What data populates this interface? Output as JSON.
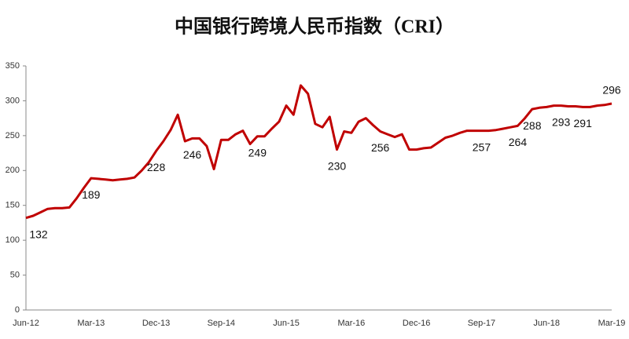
{
  "chart_data": {
    "type": "line",
    "title": "中国银行跨境人民币指数（CRI）",
    "categories": [
      "Jun-12",
      null,
      null,
      null,
      null,
      null,
      null,
      null,
      null,
      "Mar-13",
      null,
      null,
      null,
      null,
      null,
      null,
      null,
      null,
      "Dec-13",
      null,
      null,
      null,
      null,
      null,
      null,
      null,
      null,
      "Sep-14",
      null,
      null,
      null,
      null,
      null,
      null,
      null,
      null,
      "Jun-15",
      null,
      null,
      null,
      null,
      null,
      null,
      null,
      null,
      "Mar-16",
      null,
      null,
      null,
      null,
      null,
      null,
      null,
      null,
      "Dec-16",
      null,
      null,
      null,
      null,
      null,
      null,
      null,
      null,
      "Sep-17",
      null,
      null,
      null,
      null,
      null,
      null,
      null,
      null,
      "Jun-18",
      null,
      null,
      null,
      null,
      null,
      null,
      null,
      null,
      "Mar-19"
    ],
    "series": [
      {
        "name": "CRI",
        "color": "#c00000",
        "values": [
          132,
          135,
          140,
          145,
          146,
          146,
          147,
          160,
          175,
          189,
          188,
          187,
          186,
          187,
          188,
          190,
          200,
          212,
          228,
          242,
          258,
          280,
          242,
          246,
          246,
          235,
          202,
          244,
          244,
          252,
          257,
          238,
          249,
          249,
          260,
          270,
          293,
          280,
          322,
          310,
          267,
          262,
          277,
          230,
          256,
          254,
          270,
          275,
          265,
          256,
          252,
          248,
          252,
          230,
          230,
          232,
          233,
          240,
          247,
          250,
          254,
          257,
          257,
          257,
          257,
          258,
          260,
          262,
          264,
          275,
          288,
          290,
          291,
          293,
          293,
          292,
          292,
          291,
          291,
          293,
          294,
          296
        ]
      }
    ],
    "labeled_points": [
      0,
      9,
      18,
      23,
      32,
      43,
      49,
      63,
      68,
      70,
      74,
      77,
      81
    ],
    "ylim": [
      0,
      350
    ],
    "yticks": [
      0,
      50,
      100,
      150,
      200,
      250,
      300,
      350
    ],
    "grid": false
  }
}
